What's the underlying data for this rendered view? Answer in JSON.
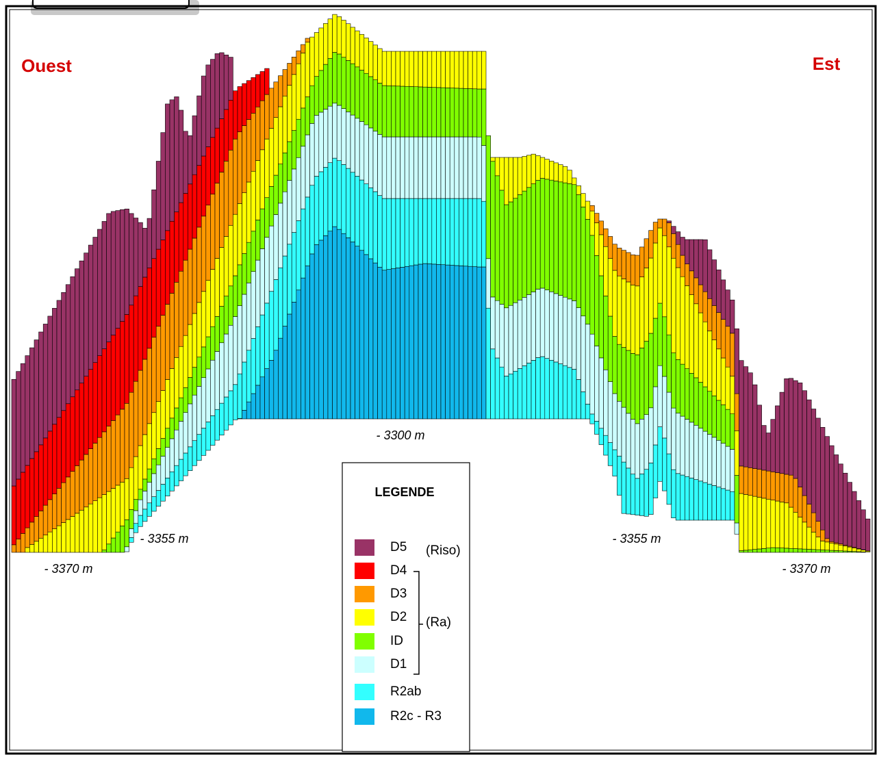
{
  "labels": {
    "west": "Ouest",
    "east": "Est"
  },
  "depths": [
    "- 3300 m",
    "- 3355 m",
    "- 3355 m",
    "- 3370 m",
    "- 3370 m"
  ],
  "legend": {
    "title": "LEGENDE",
    "items": [
      {
        "label": "D5",
        "color": "#993366"
      },
      {
        "label": "D4",
        "color": "#ff0000"
      },
      {
        "label": "D3",
        "color": "#ff9900"
      },
      {
        "label": "D2",
        "color": "#ffff00"
      },
      {
        "label": "ID",
        "color": "#80ff00"
      },
      {
        "label": "D1",
        "color": "#ccffff"
      },
      {
        "label": "R2ab",
        "color": "#33ffff"
      },
      {
        "label": "R2c - R3",
        "color": "#11b8ec"
      }
    ],
    "groups": [
      "(Riso)",
      "(Ra)"
    ]
  }
}
